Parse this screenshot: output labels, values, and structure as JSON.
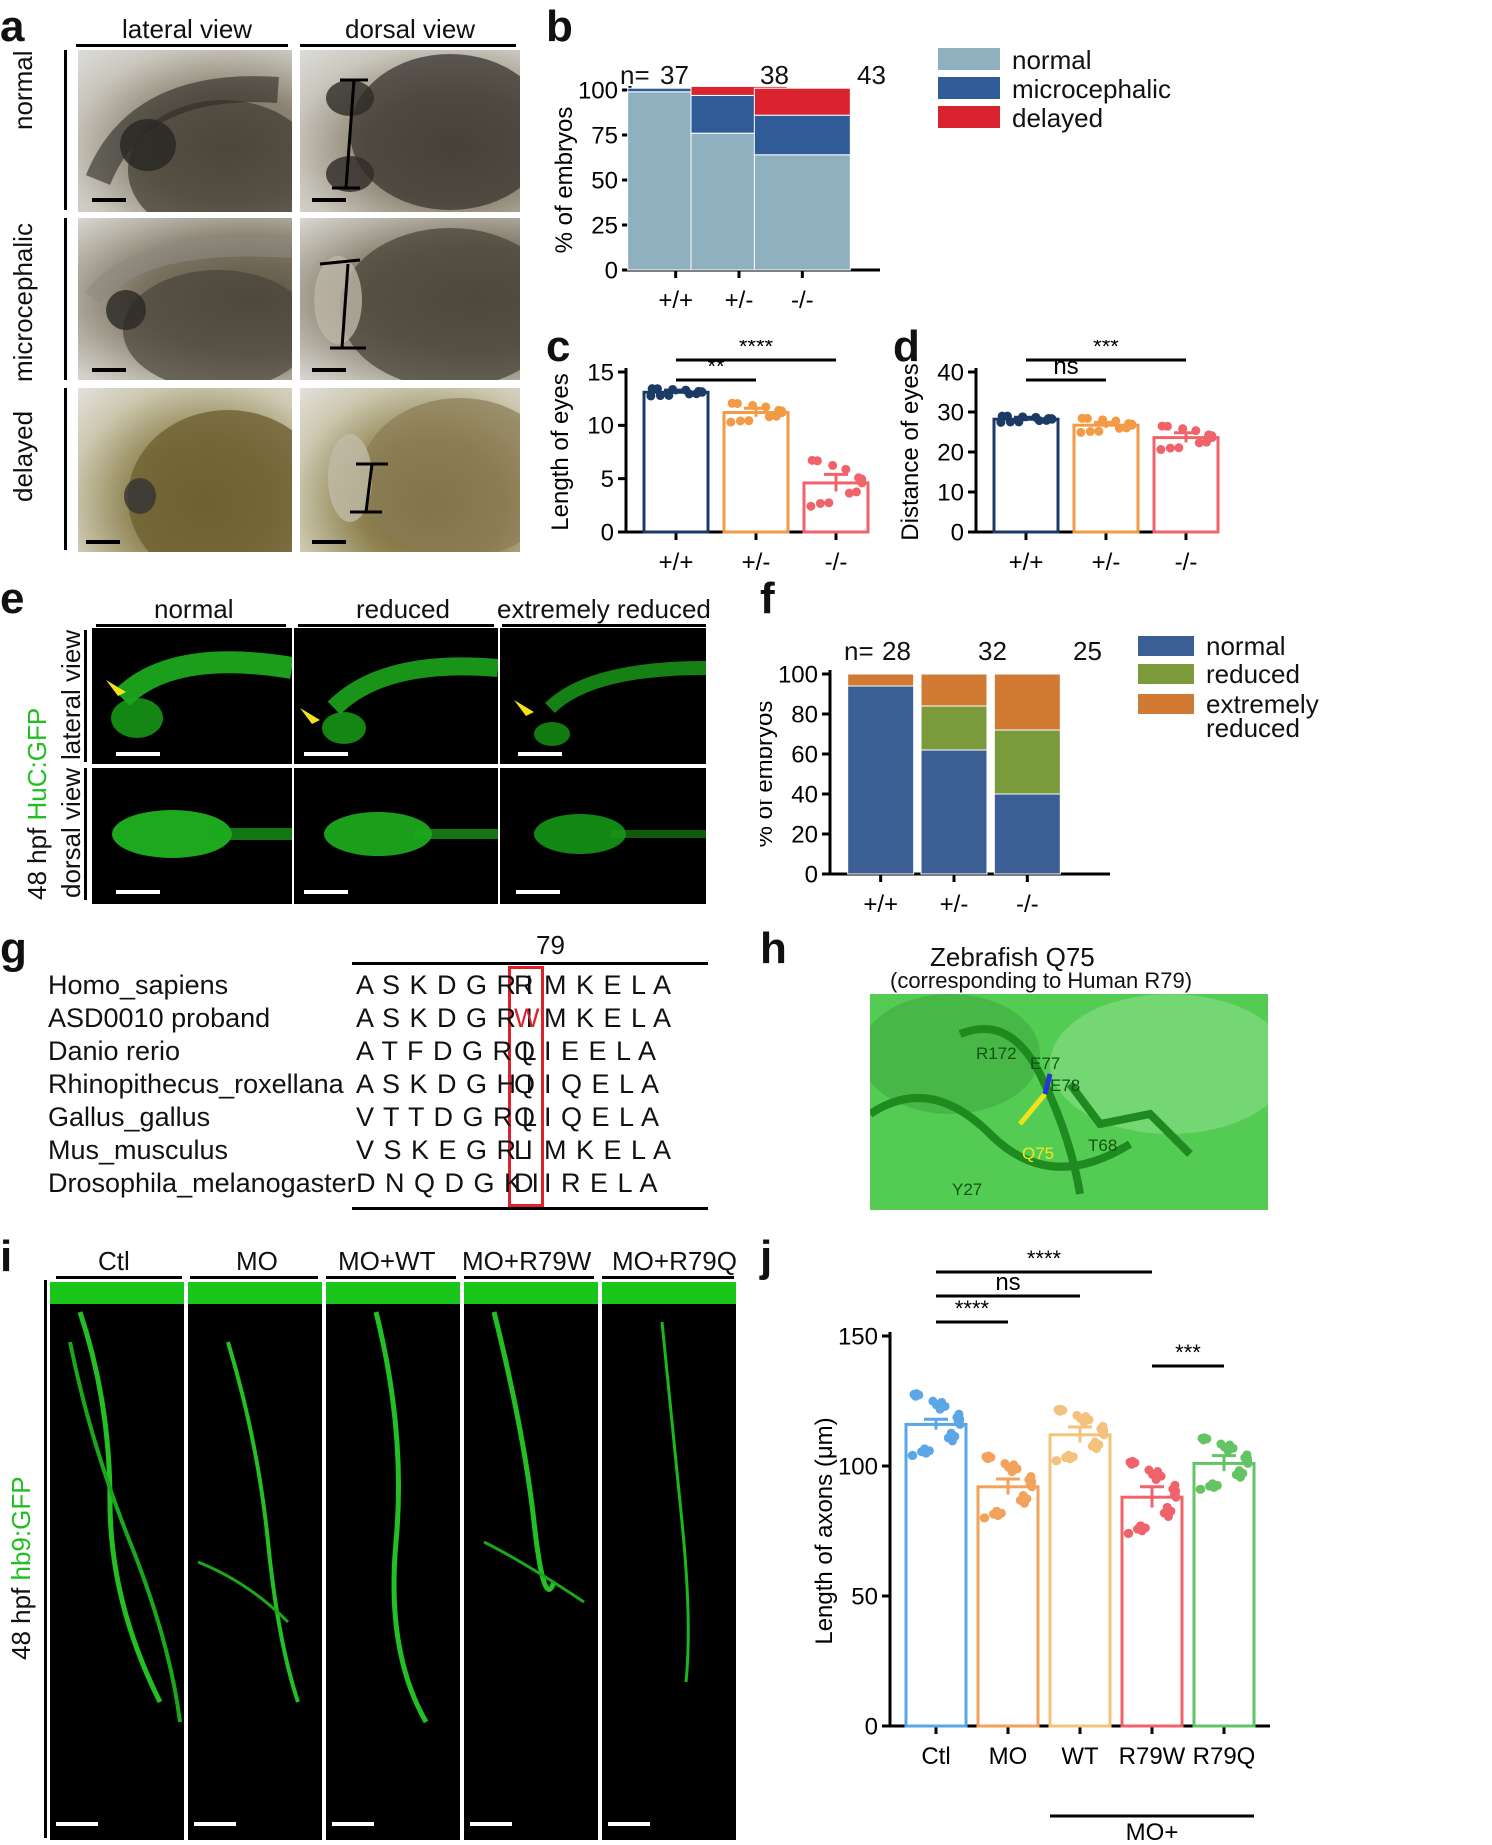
{
  "panels": {
    "a": {
      "label": "a",
      "col_titles": [
        "lateral view",
        "dorsal view"
      ],
      "row_titles": [
        "normal",
        "microcephalic",
        "delayed"
      ]
    },
    "b": {
      "label": "b",
      "n_prefix": "n=",
      "n_values": [
        "37",
        "38",
        "43"
      ],
      "ylabel": "% of embryos",
      "legend": [
        "normal",
        "microcephalic",
        "delayed"
      ],
      "colors": [
        "#8eb0bf",
        "#2f5b96",
        "#d9232e"
      ]
    },
    "c": {
      "label": "c",
      "ylabel": "Length of eyes",
      "sig": [
        "**",
        "****"
      ]
    },
    "d": {
      "label": "d",
      "ylabel": "Distance of eyes",
      "sig": [
        "ns",
        "***"
      ]
    },
    "e": {
      "label": "e",
      "col_titles": [
        "normal",
        "reduced",
        "extremely reduced"
      ],
      "row_titles": [
        "lateral view",
        "dorsal view"
      ],
      "side_label_prefix": "48 hpf ",
      "side_label_marker": "HuC:GFP"
    },
    "f": {
      "label": "f",
      "n_prefix": "n=",
      "n_values": [
        "28",
        "32",
        "25"
      ],
      "ylabel": "% of embryos",
      "legend": [
        "normal",
        "reduced",
        "extremely",
        "reduced"
      ],
      "colors": [
        "#3b5f95",
        "#7a9a3c",
        "#d07a34"
      ]
    },
    "g": {
      "label": "g",
      "position_label": "79",
      "rows": [
        {
          "species": "Homo_sapiens",
          "pre": "A S K D G R I",
          "site": "R",
          "post": "M K E L A",
          "site_color": "#111111"
        },
        {
          "species": "ASD0010 proband",
          "pre": "A S K D G R I",
          "site": "W",
          "post": "M K E L A",
          "site_color": "#d9232e"
        },
        {
          "species": "Danio rerio",
          "pre": "A T F D G R L",
          "site": "Q",
          "post": "I E E L A",
          "site_color": "#111111"
        },
        {
          "species": "Rhinopithecus_roxellana",
          "pre": "A S K D G H I",
          "site": "Q",
          "post": "I Q E L A",
          "site_color": "#111111"
        },
        {
          "species": "Gallus_gallus",
          "pre": "V T T D G R L",
          "site": "Q",
          "post": "I Q E L A",
          "site_color": "#111111"
        },
        {
          "species": "Mus_musculus",
          "pre": "V S K E G R I",
          "site": "L",
          "post": "M K E L A",
          "site_color": "#111111"
        },
        {
          "species": "Drosophila_melanogaster",
          "pre": "D N Q D G K I",
          "site": "D",
          "post": "I R E L A",
          "site_color": "#111111"
        }
      ]
    },
    "h": {
      "label": "h",
      "title": "Zebrafish Q75",
      "subtitle": "(corresponding to Human R79)",
      "residues": [
        "R172",
        "E77",
        "E78",
        "Q75",
        "T68",
        "Y27"
      ]
    },
    "i": {
      "label": "i",
      "col_titles": [
        "Ctl",
        "MO",
        "MO+WT",
        "MO+R79W",
        "MO+R79Q"
      ],
      "side_label_prefix": "48 hpf ",
      "side_label_marker": "hb9:GFP"
    },
    "j": {
      "label": "j",
      "ylabel": "Length of axons (μm)",
      "sig": [
        "****",
        "ns",
        "****",
        "***"
      ],
      "group_label": "MO+"
    }
  },
  "chart_data": [
    {
      "panel": "b",
      "type": "bar",
      "stacked": true,
      "categories": [
        "+/+",
        "+/-",
        "-/-"
      ],
      "series": [
        {
          "name": "normal",
          "values": [
            99,
            76,
            64
          ]
        },
        {
          "name": "microcephalic",
          "values": [
            2,
            21,
            22
          ]
        },
        {
          "name": "delayed",
          "values": [
            0,
            5,
            15
          ]
        }
      ],
      "ylabel": "% of embryos",
      "ylim": [
        0,
        100
      ],
      "yticks": [
        0,
        25,
        50,
        75,
        100
      ]
    },
    {
      "panel": "c",
      "type": "bar",
      "categories": [
        "+/+",
        "+/-",
        "-/-"
      ],
      "values": [
        13.1,
        11.2,
        4.6
      ],
      "errors": [
        0.2,
        0.4,
        0.8
      ],
      "ylabel": "Length of eyes",
      "ylim": [
        0,
        15
      ],
      "yticks": [
        0,
        5,
        10,
        15
      ],
      "colors": [
        "#1b3a66",
        "#f29a44",
        "#f0636a"
      ]
    },
    {
      "panel": "d",
      "type": "bar",
      "categories": [
        "+/+",
        "+/-",
        "-/-"
      ],
      "values": [
        28.2,
        26.7,
        23.6
      ],
      "errors": [
        0.5,
        0.7,
        1.2
      ],
      "ylabel": "Distance of eyes",
      "ylim": [
        0,
        40
      ],
      "yticks": [
        0,
        10,
        20,
        30,
        40
      ],
      "colors": [
        "#1b3a66",
        "#f29a44",
        "#f0636a"
      ]
    },
    {
      "panel": "f",
      "type": "bar",
      "stacked": true,
      "categories": [
        "+/+",
        "+/-",
        "-/-"
      ],
      "series": [
        {
          "name": "normal",
          "values": [
            94,
            62,
            40
          ]
        },
        {
          "name": "reduced",
          "values": [
            0,
            22,
            32
          ]
        },
        {
          "name": "extremely reduced",
          "values": [
            6,
            16,
            28
          ]
        }
      ],
      "ylabel": "% of embryos",
      "ylim": [
        0,
        100
      ],
      "yticks": [
        0,
        20,
        40,
        60,
        80,
        100
      ]
    },
    {
      "panel": "j",
      "type": "bar",
      "categories": [
        "Ctl",
        "MO",
        "WT",
        "R79W",
        "R79Q"
      ],
      "values": [
        116,
        92,
        112,
        88,
        101
      ],
      "errors": [
        2,
        3,
        3,
        4,
        3
      ],
      "ylabel": "Length of axons (μm)",
      "ylim": [
        0,
        150
      ],
      "yticks": [
        0,
        50,
        100,
        150
      ],
      "colors": [
        "#5aa6e6",
        "#f2a25a",
        "#f5c27e",
        "#f0636a",
        "#63c463"
      ]
    }
  ]
}
